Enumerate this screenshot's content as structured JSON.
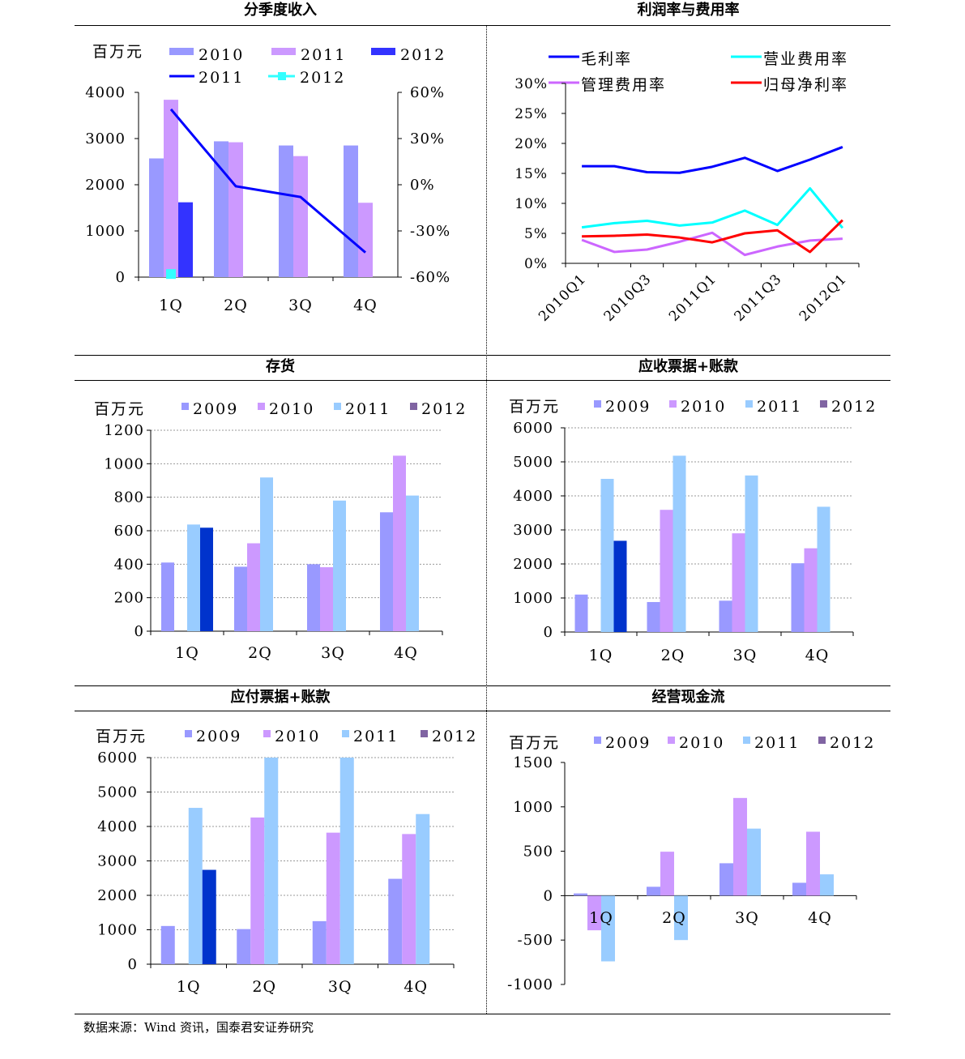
{
  "source": "数据来源：Wind 资讯，国泰君安证券研究",
  "colors": {
    "c2009": "#9999ff",
    "c2010": "#cc99ff",
    "c2011": "#99ccff",
    "c2012_bar": "#0033cc",
    "c2012_rev": "#3333ff",
    "line_2011": "#0000ff",
    "marker_2012": "#33ffff",
    "gross": "#0000ff",
    "sales": "#00ffff",
    "admin": "#cc66ff",
    "net": "#ff0000",
    "purple_legend": "#8064a2"
  },
  "chart_data": [
    {
      "id": "revenue",
      "type": "bar",
      "title": "分季度收入",
      "unit": "百万元",
      "categories": [
        "1Q",
        "2Q",
        "3Q",
        "4Q"
      ],
      "ylim": [
        0,
        4000
      ],
      "yticks": [
        "0",
        "1000",
        "2000",
        "3000",
        "4000"
      ],
      "series": [
        {
          "name": "2010",
          "values": [
            2570,
            2940,
            2850,
            2850
          ]
        },
        {
          "name": "2011",
          "values": [
            3840,
            2920,
            2620,
            1610
          ]
        },
        {
          "name": "2012",
          "values": [
            1620,
            null,
            null,
            null
          ]
        }
      ],
      "secondary_axis": {
        "ylim": [
          -0.6,
          0.6
        ],
        "yticks": [
          "-60%",
          "-30%",
          "0%",
          "30%",
          "60%"
        ],
        "series": [
          {
            "name": "2011",
            "type": "line",
            "values": [
              0.49,
              -0.01,
              -0.08,
              -0.44
            ]
          },
          {
            "name": "2012",
            "type": "marker",
            "values": [
              -0.58,
              null,
              null,
              null
            ]
          }
        ]
      },
      "grid": false
    },
    {
      "id": "margins",
      "type": "line",
      "title": "利润率与费用率",
      "x": [
        "2010Q1",
        "2010Q2",
        "2010Q3",
        "2010Q4",
        "2011Q1",
        "2011Q2",
        "2011Q3",
        "2011Q4",
        "2012Q1"
      ],
      "xtick_labels": [
        "2010Q1",
        "2010Q3",
        "2011Q1",
        "2011Q3",
        "2012Q1"
      ],
      "ylim": [
        0,
        0.3
      ],
      "yticks": [
        "0%",
        "5%",
        "10%",
        "15%",
        "20%",
        "25%",
        "30%"
      ],
      "series": [
        {
          "name": "毛利率",
          "values": [
            0.162,
            0.162,
            0.152,
            0.151,
            0.161,
            0.176,
            0.154,
            0.173,
            0.194
          ]
        },
        {
          "name": "营业费用率",
          "values": [
            0.06,
            0.067,
            0.071,
            0.063,
            0.068,
            0.088,
            0.064,
            0.125,
            0.059
          ]
        },
        {
          "name": "管理费用率",
          "values": [
            0.039,
            0.019,
            0.023,
            0.036,
            0.051,
            0.014,
            0.028,
            0.038,
            0.041
          ]
        },
        {
          "name": "归母净利率",
          "values": [
            0.045,
            0.046,
            0.048,
            0.043,
            0.035,
            0.05,
            0.055,
            0.019,
            0.072
          ]
        }
      ],
      "grid": false
    },
    {
      "id": "inventory",
      "type": "bar",
      "title": "存货",
      "unit": "百万元",
      "categories": [
        "1Q",
        "2Q",
        "3Q",
        "4Q"
      ],
      "ylim": [
        0,
        1200
      ],
      "yticks": [
        "0",
        "200",
        "400",
        "600",
        "800",
        "1000",
        "1200"
      ],
      "series": [
        {
          "name": "2009",
          "values": [
            410,
            385,
            400,
            710
          ]
        },
        {
          "name": "2010",
          "values": [
            null,
            525,
            382,
            1048
          ]
        },
        {
          "name": "2011",
          "values": [
            637,
            918,
            780,
            810
          ]
        },
        {
          "name": "2012",
          "values": [
            618,
            null,
            null,
            null
          ]
        }
      ],
      "grid": true
    },
    {
      "id": "receivables",
      "type": "bar",
      "title": "应收票据+账款",
      "unit": "百万元",
      "categories": [
        "1Q",
        "2Q",
        "3Q",
        "4Q"
      ],
      "ylim": [
        0,
        6000
      ],
      "yticks": [
        "0",
        "1000",
        "2000",
        "3000",
        "4000",
        "5000",
        "6000"
      ],
      "series": [
        {
          "name": "2009",
          "values": [
            1100,
            880,
            920,
            2020
          ]
        },
        {
          "name": "2010",
          "values": [
            null,
            3590,
            2900,
            2460
          ]
        },
        {
          "name": "2011",
          "values": [
            4500,
            5180,
            4600,
            3680
          ]
        },
        {
          "name": "2012",
          "values": [
            2680,
            null,
            null,
            null
          ]
        }
      ],
      "grid": true
    },
    {
      "id": "payables",
      "type": "bar",
      "title": "应付票据+账款",
      "unit": "百万元",
      "categories": [
        "1Q",
        "2Q",
        "3Q",
        "4Q"
      ],
      "ylim": [
        0,
        6000
      ],
      "yticks": [
        "0",
        "1000",
        "2000",
        "3000",
        "4000",
        "5000",
        "6000"
      ],
      "series": [
        {
          "name": "2009",
          "values": [
            1110,
            1020,
            1250,
            2480
          ]
        },
        {
          "name": "2010",
          "values": [
            null,
            4260,
            3820,
            3780
          ]
        },
        {
          "name": "2011",
          "values": [
            4540,
            6000,
            6000,
            4360
          ]
        },
        {
          "name": "2012",
          "values": [
            2740,
            null,
            null,
            null
          ]
        }
      ],
      "grid": true
    },
    {
      "id": "cashflow",
      "type": "bar",
      "title": "经营现金流",
      "unit": "百万元",
      "categories": [
        "1Q",
        "2Q",
        "3Q",
        "4Q"
      ],
      "ylim": [
        -1000,
        1500
      ],
      "yticks": [
        "-1000",
        "-500",
        "0",
        "500",
        "1000",
        "1500"
      ],
      "series": [
        {
          "name": "2009",
          "values": [
            25,
            100,
            365,
            145
          ]
        },
        {
          "name": "2010",
          "values": [
            -390,
            495,
            1100,
            720
          ]
        },
        {
          "name": "2011",
          "values": [
            -740,
            -500,
            755,
            240
          ]
        },
        {
          "name": "2012",
          "values": [
            null,
            null,
            null,
            null
          ]
        }
      ],
      "grid": false
    }
  ]
}
